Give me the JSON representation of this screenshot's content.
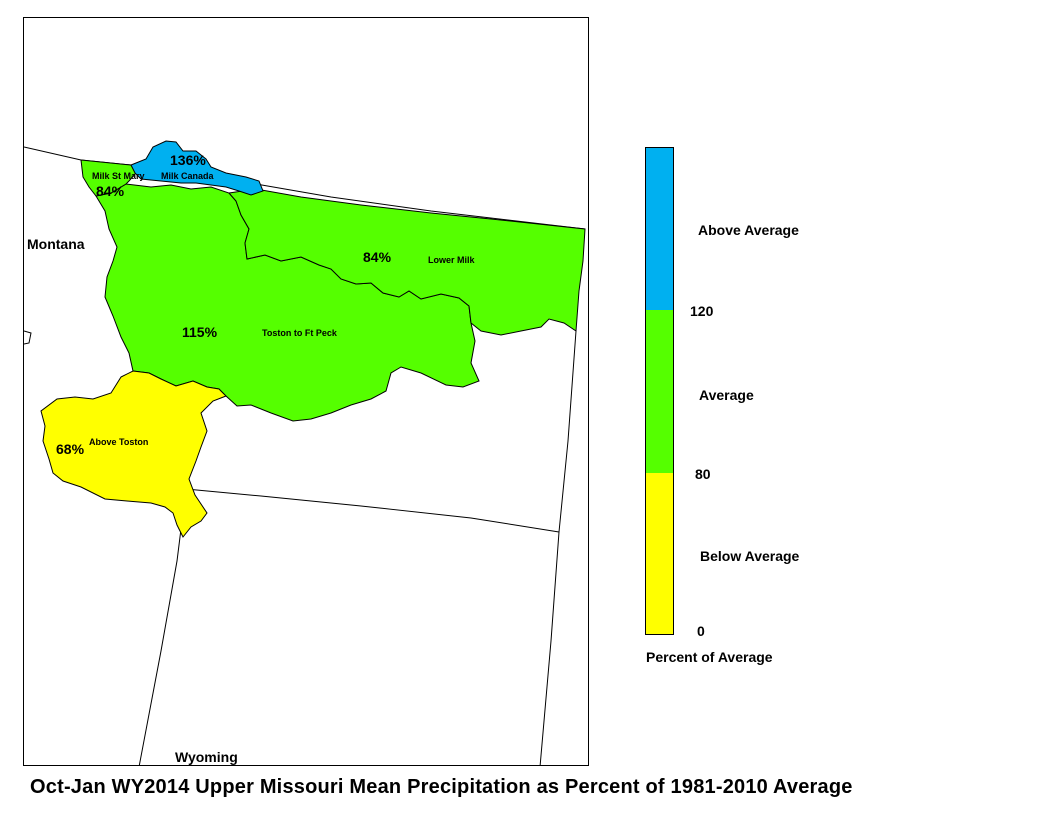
{
  "map": {
    "title": "Oct-Jan WY2014 Upper Missouri Mean Precipitation as Percent of 1981-2010 Average",
    "states": [
      {
        "name": "Montana"
      },
      {
        "name": "Wyoming"
      }
    ],
    "basins": [
      {
        "name": "Milk St Mary",
        "percent": "84%",
        "category": "Average"
      },
      {
        "name": "Milk Canada",
        "percent": "136%",
        "category": "Above Average"
      },
      {
        "name": "Lower Milk",
        "percent": "84%",
        "category": "Average"
      },
      {
        "name": "Toston to Ft Peck",
        "percent": "115%",
        "category": "Average"
      },
      {
        "name": "Above Toston",
        "percent": "68%",
        "category": "Below Average"
      }
    ]
  },
  "legend": {
    "title": "Percent of Average",
    "categories": [
      {
        "label": "Above Average",
        "color": "#00b0f0"
      },
      {
        "label": "Average",
        "color": "#55ff00"
      },
      {
        "label": "Below Average",
        "color": "#ffff00"
      }
    ],
    "breaks": [
      "120",
      "80",
      "0"
    ]
  },
  "colors": {
    "above_average": "#00b0f0",
    "average": "#55ff00",
    "below_average": "#ffff00",
    "outline": "#000000"
  }
}
